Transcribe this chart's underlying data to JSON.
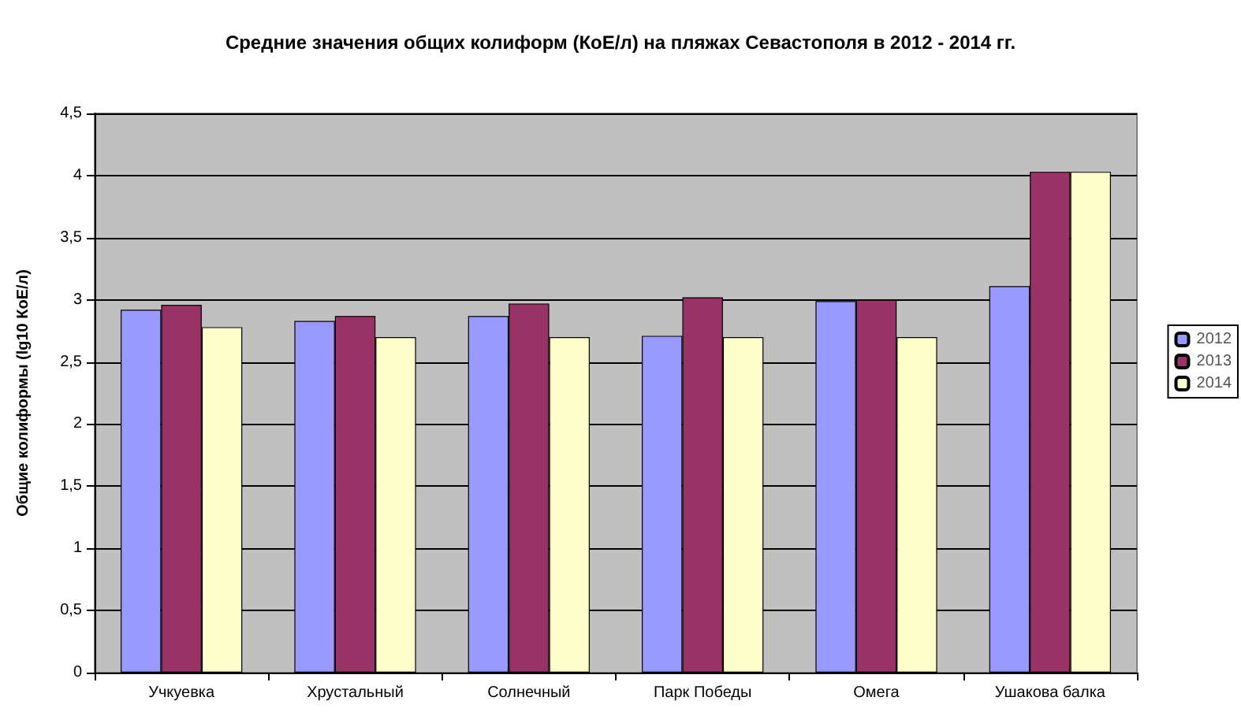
{
  "chart_data": {
    "type": "bar",
    "title": "Средние значения общих колиформ (КоЕ/л) на пляжах Севастополя в 2012 - 2014 гг.",
    "ylabel": "Общие колиформы (lg10 КоЕ/л)",
    "categories": [
      "Учкуевка",
      "Хрустальный",
      "Солнечный",
      "Парк Победы",
      "Омега",
      "Ушакова балка"
    ],
    "series": [
      {
        "name": "2012",
        "color": "#9999ff",
        "values": [
          2.92,
          2.83,
          2.87,
          2.71,
          2.99,
          3.11
        ]
      },
      {
        "name": "2013",
        "color": "#993366",
        "values": [
          2.96,
          2.87,
          2.97,
          3.02,
          3.0,
          4.03
        ]
      },
      {
        "name": "2014",
        "color": "#ffffcc",
        "values": [
          2.78,
          2.7,
          2.7,
          2.7,
          2.7,
          4.03
        ]
      }
    ],
    "ylim": [
      0,
      4.5
    ],
    "yticks": [
      0,
      {
        "value": 0.5,
        "label": "0,5"
      },
      1,
      {
        "value": 1.5,
        "label": "1,5"
      },
      2,
      {
        "value": 2.5,
        "label": "2,5"
      },
      3,
      {
        "value": 3.5,
        "label": "3,5"
      },
      4,
      {
        "value": 4.5,
        "label": "4,5"
      }
    ],
    "grid": "y",
    "legend": "right"
  }
}
